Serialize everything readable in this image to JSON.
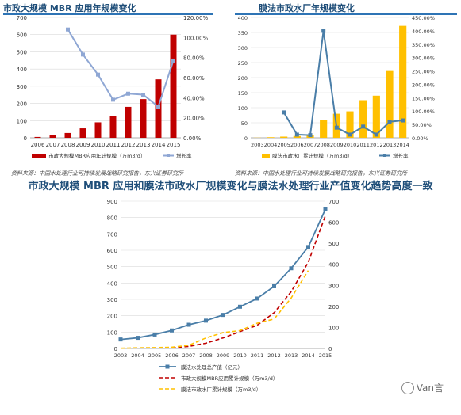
{
  "left_title": "市政大规模 MBR 应用年规模变化",
  "right_title": "膜法市政水厂年规模变化",
  "bottom_title": "市政大规模 MBR 应用和膜法市政水厂规模变化与膜法水处理行业产值变化趋势高度一致",
  "source_left": "资料来源：中国水处理行业可持续发展战略研究报告，东兴证券研究所",
  "source_right": "资料来源：中国水处理行业可持续发展战略研究报告，东兴证券研究所",
  "watermark": "Van言",
  "colors": {
    "bar_red": "#c00000",
    "line_blue": "#8fa7d4",
    "bar_gold": "#ffc000",
    "line_steel": "#4a7ea8",
    "grid": "#d9d9d9"
  },
  "chart_data": [
    {
      "type": "bar",
      "categories": [
        "2006",
        "2007",
        "2008",
        "2009",
        "2010",
        "2011",
        "2012",
        "2013",
        "2014",
        "2015"
      ],
      "series": [
        {
          "name": "市政大规模MBR应用年计规模（万m3/d）",
          "kind": "bar",
          "axis": "left",
          "values": [
            5,
            14,
            28,
            55,
            90,
            125,
            180,
            225,
            340,
            600
          ]
        },
        {
          "name": "增长率",
          "kind": "line",
          "axis": "right",
          "values": [
            null,
            null,
            108,
            83,
            63,
            38,
            44,
            43,
            31,
            77
          ]
        }
      ],
      "y_left": {
        "min": 0,
        "max": 700,
        "ticks": [
          0,
          100,
          200,
          300,
          400,
          500,
          600,
          700
        ]
      },
      "y_right": {
        "min": 0,
        "max": 120,
        "ticks": [
          "0.00%",
          "20.00%",
          "40.00%",
          "60.00%",
          "80.00%",
          "100.00%",
          "120.00%"
        ]
      }
    },
    {
      "type": "bar",
      "categories": [
        "2003",
        "2004",
        "2005",
        "2006",
        "2007",
        "2008",
        "2009",
        "2010",
        "2011",
        "2012",
        "2013",
        "2014"
      ],
      "series": [
        {
          "name": "膜法市政水厂累计规模（万m3/d）",
          "kind": "bar",
          "axis": "left",
          "values": [
            0.5,
            2,
            4,
            6,
            10,
            58,
            80,
            88,
            125,
            140,
            222,
            372
          ]
        },
        {
          "name": "增长率",
          "kind": "line",
          "axis": "right",
          "values": [
            null,
            null,
            95,
            12,
            10,
            400,
            38,
            12,
            42,
            12,
            60,
            65
          ]
        }
      ],
      "y_left": {
        "min": 0,
        "max": 400,
        "ticks": [
          0,
          50,
          100,
          150,
          200,
          250,
          300,
          350,
          400
        ]
      },
      "y_right": {
        "min": 0,
        "max": 450,
        "ticks": [
          "0.00%",
          "50.00%",
          "100.00%",
          "150.00%",
          "200.00%",
          "250.00%",
          "300.00%",
          "350.00%",
          "400.00%",
          "450.00%"
        ]
      }
    },
    {
      "type": "line",
      "categories": [
        "2003",
        "2004",
        "2005",
        "2006",
        "2007",
        "2008",
        "2009",
        "2010",
        "2011",
        "2012",
        "2013",
        "2014",
        "2015"
      ],
      "series": [
        {
          "name": "膜法水处理总产值（亿元）",
          "axis": "left",
          "style": "solid-marker",
          "values": [
            55,
            65,
            85,
            110,
            145,
            170,
            205,
            255,
            305,
            380,
            490,
            620,
            850
          ]
        },
        {
          "name": "市政大规模MBR应用累计规模（万m3/d）",
          "axis": "right",
          "style": "dashed-red",
          "values": [
            null,
            null,
            null,
            3,
            10,
            25,
            50,
            80,
            110,
            170,
            270,
            410,
            630
          ]
        },
        {
          "name": "膜法市政水厂累计规模（万m3/d）",
          "axis": "right",
          "style": "dashed-gold",
          "values": [
            1,
            3,
            4,
            6,
            15,
            50,
            75,
            85,
            120,
            140,
            240,
            370,
            null
          ]
        }
      ],
      "y_left": {
        "min": 0,
        "max": 900,
        "ticks": [
          0,
          100,
          200,
          300,
          400,
          500,
          600,
          700,
          800,
          900
        ]
      },
      "y_right": {
        "min": 0,
        "max": 700,
        "ticks": [
          0,
          100,
          200,
          300,
          400,
          500,
          600,
          700
        ]
      }
    }
  ]
}
